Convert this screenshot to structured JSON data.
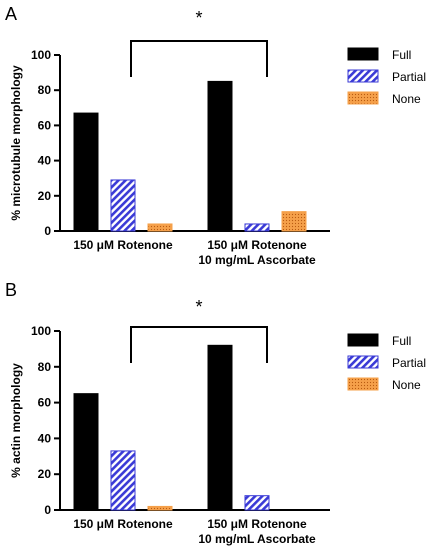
{
  "colors": {
    "full": "#000000",
    "partial": "#3a3ad6",
    "none": "#f5a04a",
    "axis": "#000000"
  },
  "series_style": {
    "Full": "solid",
    "Partial": "hatch",
    "None": "dots"
  },
  "significance_marker": "*",
  "legend_position": "right",
  "chart_data": [
    {
      "type": "bar",
      "panel": "A",
      "ylabel": "% microtubule morphology",
      "ylim": [
        0,
        100
      ],
      "yticks": [
        0,
        20,
        40,
        60,
        80,
        100
      ],
      "categories": [
        {
          "line1": "150 μM Rotenone",
          "line2": ""
        },
        {
          "line1": "150 μM Rotenone",
          "line2": "10 mg/mL Ascorbate"
        }
      ],
      "series": [
        {
          "name": "Full",
          "values": [
            67,
            85
          ]
        },
        {
          "name": "Partial",
          "values": [
            29,
            4
          ]
        },
        {
          "name": "None",
          "values": [
            4,
            11
          ]
        }
      ],
      "significance": {
        "label": "*"
      }
    },
    {
      "type": "bar",
      "panel": "B",
      "ylabel": "% actin morphology",
      "ylim": [
        0,
        100
      ],
      "yticks": [
        0,
        20,
        40,
        60,
        80,
        100
      ],
      "categories": [
        {
          "line1": "150 μM Rotenone",
          "line2": ""
        },
        {
          "line1": "150 μM Rotenone",
          "line2": "10 mg/mL Ascorbate"
        }
      ],
      "series": [
        {
          "name": "Full",
          "values": [
            65,
            92
          ]
        },
        {
          "name": "Partial",
          "values": [
            33,
            8
          ]
        },
        {
          "name": "None",
          "values": [
            2,
            0
          ]
        }
      ],
      "significance": {
        "label": "*"
      }
    }
  ]
}
